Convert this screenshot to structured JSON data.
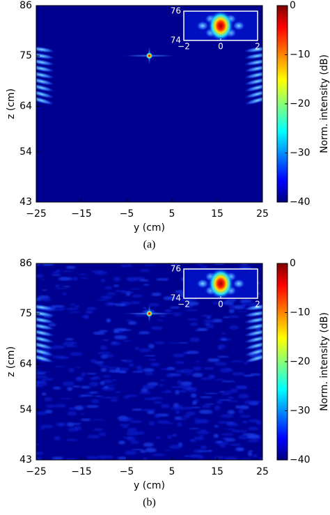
{
  "chart_data": [
    {
      "type": "heatmap",
      "xlabel": "y (cm)",
      "ylabel": "z (cm)",
      "caption": "(a)",
      "xlim": [
        -25,
        25
      ],
      "ylim": [
        43,
        86
      ],
      "xticks": [
        {
          "value": -25,
          "label": "−25"
        },
        {
          "value": -15,
          "label": "−15"
        },
        {
          "value": -5,
          "label": "−5"
        },
        5,
        15,
        25
      ],
      "yticks": [
        43,
        54,
        64,
        75,
        86
      ],
      "colorbar": {
        "label": "Norm. intensity (dB)",
        "lim": [
          -40,
          0
        ],
        "ticks": [
          {
            "value": -40,
            "label": "−40"
          },
          {
            "value": -30,
            "label": "−30"
          },
          {
            "value": -20,
            "label": "−20"
          },
          {
            "value": -10,
            "label": "−10"
          },
          0
        ]
      },
      "inset": {
        "xlim": [
          -2,
          2
        ],
        "ylim": [
          74,
          76
        ],
        "xticks": [
          {
            "value": -2,
            "label": "−2"
          },
          0,
          2
        ],
        "yticks": [
          74,
          76
        ]
      }
    },
    {
      "type": "heatmap",
      "xlabel": "y (cm)",
      "ylabel": "z (cm)",
      "caption": "(b)",
      "xlim": [
        -25,
        25
      ],
      "ylim": [
        43,
        86
      ],
      "xticks": [
        {
          "value": -25,
          "label": "−25"
        },
        {
          "value": -15,
          "label": "−15"
        },
        {
          "value": -5,
          "label": "−5"
        },
        5,
        15,
        25
      ],
      "yticks": [
        43,
        54,
        64,
        75,
        86
      ],
      "colorbar": {
        "label": "Norm. intensity (dB)",
        "lim": [
          -40,
          0
        ],
        "ticks": [
          {
            "value": -40,
            "label": "−40"
          },
          {
            "value": -30,
            "label": "−30"
          },
          {
            "value": -20,
            "label": "−20"
          },
          {
            "value": -10,
            "label": "−10"
          },
          0
        ]
      },
      "inset": {
        "xlim": [
          -2,
          2
        ],
        "ylim": [
          74,
          76
        ],
        "xticks": [
          {
            "value": -2,
            "label": "−2"
          },
          0,
          2
        ],
        "yticks": [
          74,
          76
        ]
      }
    }
  ]
}
